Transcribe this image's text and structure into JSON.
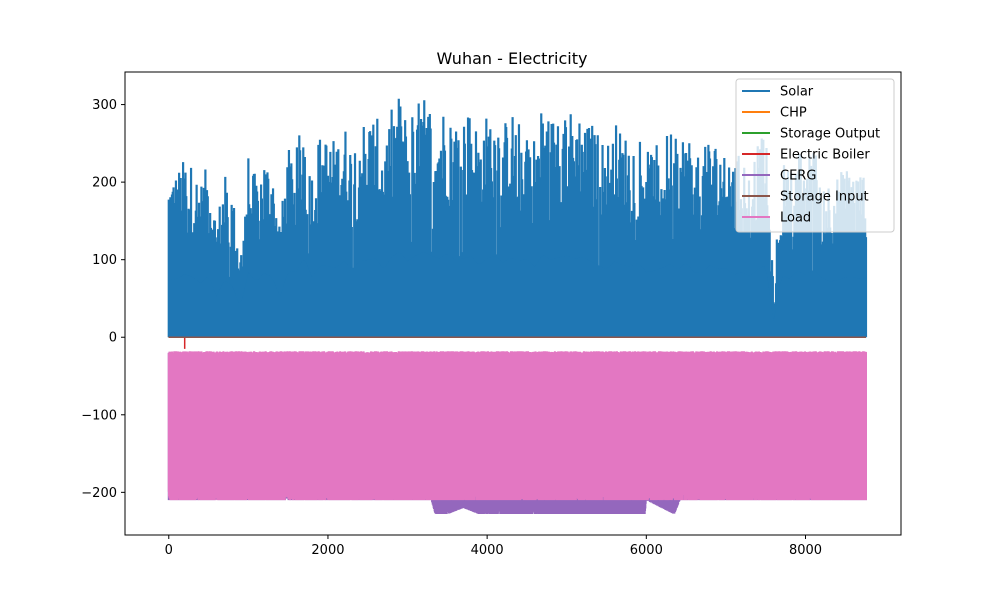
{
  "chart_data": {
    "type": "line",
    "title": "Wuhan - Electricity",
    "xlabel": "",
    "ylabel": "",
    "xlim": [
      -550,
      9200
    ],
    "ylim": [
      -255,
      342
    ],
    "x_ticks": [
      0,
      2000,
      4000,
      6000,
      8000
    ],
    "y_ticks": [
      -200,
      -100,
      0,
      100,
      200,
      300
    ],
    "x_tick_labels": [
      "0",
      "2000",
      "4000",
      "6000",
      "8000"
    ],
    "y_tick_labels": [
      "−200",
      "−100",
      "0",
      "100",
      "200",
      "300"
    ],
    "grid": false,
    "legend_position": "top-right",
    "x_range": [
      0,
      8760
    ],
    "series": [
      {
        "name": "Solar",
        "color": "#1f77b4",
        "hourly_range": [
          0,
          315
        ],
        "daily_peak_envelope": [
          [
            0,
            210
          ],
          [
            100,
            215
          ],
          [
            200,
            232
          ],
          [
            300,
            222
          ],
          [
            400,
            200
          ],
          [
            500,
            228
          ],
          [
            600,
            150
          ],
          [
            700,
            212
          ],
          [
            800,
            188
          ],
          [
            900,
            110
          ],
          [
            1000,
            238
          ],
          [
            1100,
            205
          ],
          [
            1200,
            237
          ],
          [
            1300,
            220
          ],
          [
            1400,
            150
          ],
          [
            1500,
            244
          ],
          [
            1600,
            240
          ],
          [
            1700,
            296
          ],
          [
            1800,
            220
          ],
          [
            1900,
            264
          ],
          [
            2000,
            262
          ],
          [
            2100,
            255
          ],
          [
            2200,
            280
          ],
          [
            2300,
            250
          ],
          [
            2400,
            280
          ],
          [
            2500,
            285
          ],
          [
            2600,
            290
          ],
          [
            2700,
            250
          ],
          [
            2800,
            295
          ],
          [
            2900,
            316
          ],
          [
            3000,
            280
          ],
          [
            3100,
            300
          ],
          [
            3200,
            315
          ],
          [
            3300,
            300
          ],
          [
            3400,
            290
          ],
          [
            3500,
            310
          ],
          [
            3600,
            285
          ],
          [
            3700,
            290
          ],
          [
            3800,
            298
          ],
          [
            3900,
            265
          ],
          [
            4000,
            290
          ],
          [
            4100,
            300
          ],
          [
            4200,
            275
          ],
          [
            4300,
            295
          ],
          [
            4400,
            280
          ],
          [
            4500,
            290
          ],
          [
            4600,
            260
          ],
          [
            4700,
            305
          ],
          [
            4800,
            285
          ],
          [
            4900,
            295
          ],
          [
            5000,
            300
          ],
          [
            5100,
            290
          ],
          [
            5200,
            295
          ],
          [
            5300,
            280
          ],
          [
            5400,
            265
          ],
          [
            5500,
            250
          ],
          [
            5600,
            280
          ],
          [
            5700,
            265
          ],
          [
            5800,
            260
          ],
          [
            5900,
            275
          ],
          [
            6000,
            240
          ],
          [
            6100,
            245
          ],
          [
            6200,
            255
          ],
          [
            6300,
            270
          ],
          [
            6400,
            250
          ],
          [
            6500,
            275
          ],
          [
            6600,
            240
          ],
          [
            6700,
            235
          ],
          [
            6800,
            265
          ],
          [
            6900,
            250
          ],
          [
            7000,
            255
          ],
          [
            7100,
            230
          ],
          [
            7200,
            240
          ],
          [
            7300,
            225
          ],
          [
            7400,
            250
          ],
          [
            7500,
            265
          ],
          [
            7600,
            60
          ],
          [
            7700,
            230
          ],
          [
            7800,
            215
          ],
          [
            7900,
            245
          ],
          [
            8000,
            230
          ],
          [
            8100,
            250
          ],
          [
            8200,
            220
          ],
          [
            8300,
            205
          ],
          [
            8400,
            210
          ],
          [
            8500,
            220
          ],
          [
            8600,
            220
          ],
          [
            8700,
            215
          ],
          [
            8760,
            220
          ]
        ]
      },
      {
        "name": "CHP",
        "color": "#ff7f0e",
        "constant": 0
      },
      {
        "name": "Storage Output",
        "color": "#2ca02c",
        "constant": 0
      },
      {
        "name": "Electric Boiler",
        "color": "#d62728",
        "constant": 0,
        "spike": [
          200,
          -15
        ]
      },
      {
        "name": "CERG",
        "color": "#9467bd",
        "hourly_range": [
          -228,
          -20
        ],
        "min_envelope": [
          [
            0,
            -210
          ],
          [
            3300,
            -210
          ],
          [
            3350,
            -228
          ],
          [
            3500,
            -228
          ],
          [
            3700,
            -220
          ],
          [
            3900,
            -228
          ],
          [
            4200,
            -228
          ],
          [
            4600,
            -228
          ],
          [
            5000,
            -228
          ],
          [
            5600,
            -228
          ],
          [
            5980,
            -228
          ],
          [
            6000,
            -210
          ],
          [
            6350,
            -228
          ],
          [
            6420,
            -210
          ],
          [
            8760,
            -210
          ]
        ]
      },
      {
        "name": "Storage Input",
        "color": "#8c564b",
        "constant": 0
      },
      {
        "name": "Load",
        "color": "#e377c2",
        "hourly_range": [
          -210,
          -18
        ]
      }
    ]
  }
}
